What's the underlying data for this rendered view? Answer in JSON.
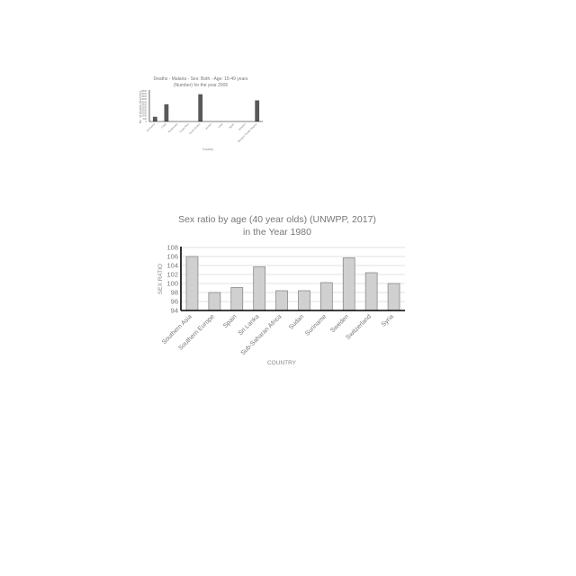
{
  "chart_data": [
    {
      "type": "bar",
      "title": "Deaths - Malaria - Sex: Both - Age: 15-49 years",
      "subtitle": "(Number) for the year 2005",
      "xlabel": "Country",
      "ylabel": "No. of deaths (Number)",
      "categories": [
        "Suriname",
        "Chad",
        "Guatemala",
        "Costa Rica",
        "South Sudan",
        "Jordan",
        "Chile",
        "Spain",
        "Jamaica",
        "Western Pacific Region"
      ],
      "values": [
        850,
        3100,
        0,
        0,
        4900,
        0,
        0,
        0,
        0,
        3800
      ],
      "ylim": [
        0,
        5500
      ],
      "yticks": [
        "0",
        "500",
        "1000",
        "1500",
        "2000",
        "2500",
        "3000",
        "3500",
        "4000",
        "4500",
        "5000",
        "5500"
      ],
      "grid": false,
      "legend": "none",
      "bar_color": "#595959"
    },
    {
      "type": "bar",
      "title": "Sex ratio by age (40 year olds) (UNWPP, 2017)",
      "subtitle": "in the Year 1980",
      "xlabel": "COUNTRY",
      "ylabel": "SEX RATIO",
      "categories": [
        "Southern Asia",
        "Southern Europe",
        "Spain",
        "Sri Lanka",
        "Sub-Saharan Africa",
        "Sudan",
        "Suriname",
        "Sweden",
        "Switzerland",
        "Syria"
      ],
      "values": [
        106,
        98,
        99.1,
        103.7,
        98.4,
        98.4,
        100.2,
        105.7,
        102.4,
        100
      ],
      "ylim": [
        94,
        108
      ],
      "yticks": [
        "94",
        "96",
        "98",
        "100",
        "102",
        "104",
        "106",
        "108"
      ],
      "grid": true,
      "legend": "none",
      "bar_color": "#d0d0d0",
      "bar_edge": "#8a8a8a"
    }
  ]
}
